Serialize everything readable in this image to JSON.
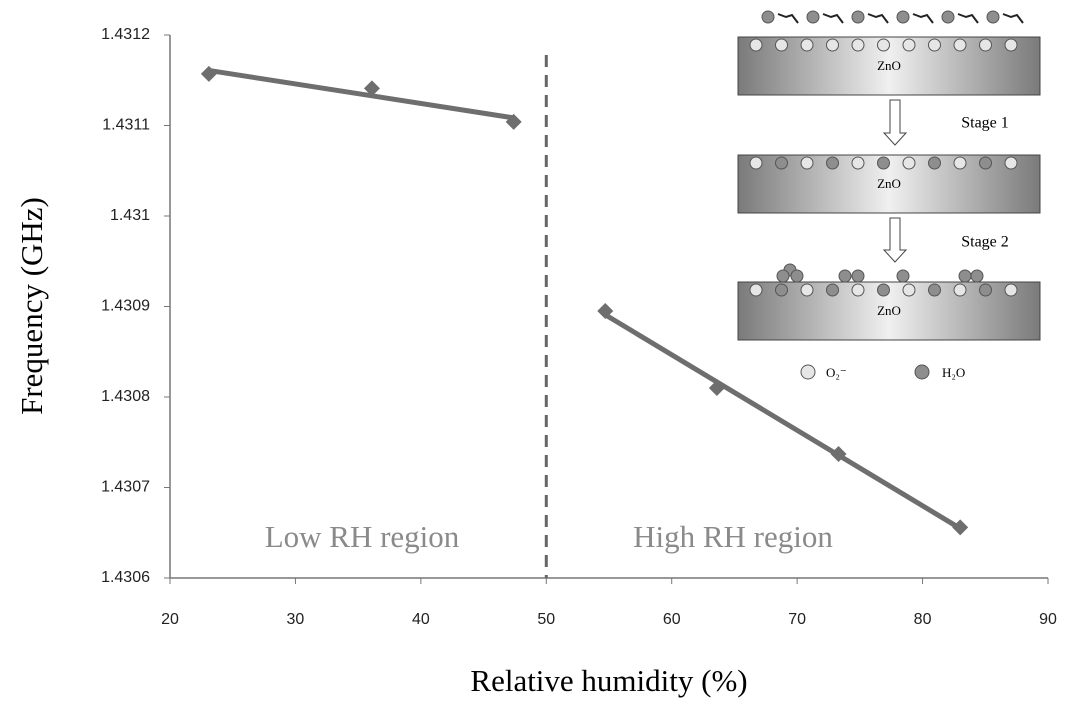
{
  "chart_data": {
    "type": "scatter",
    "x_label": "Relative humidity (%)",
    "y_label": "Frequency (GHz)",
    "x": [
      23.1,
      36.1,
      47.4,
      54.7,
      63.6,
      73.3,
      83.0
    ],
    "values": [
      1.431157,
      1.431141,
      1.431104,
      1.430895,
      1.43081,
      1.430737,
      1.430656
    ],
    "color": "#6e6e6e",
    "xlim": [
      20,
      90
    ],
    "xticks": [
      20,
      30,
      40,
      50,
      60,
      70,
      80,
      90
    ],
    "ylim": [
      1.4306,
      1.4312
    ],
    "yticks": [
      1.4306,
      1.4307,
      1.4308,
      1.4309,
      1.431,
      1.4311,
      1.4312
    ],
    "divider_x": 50,
    "annotations": [
      "Low RH region",
      "High RH region"
    ],
    "inset": {
      "substrate_labels": [
        "ZnO",
        "ZnO",
        "ZnO"
      ],
      "stages": [
        "Stage 1",
        "Stage 2"
      ],
      "legend": [
        "O₂⁻",
        "H₂O"
      ]
    }
  }
}
